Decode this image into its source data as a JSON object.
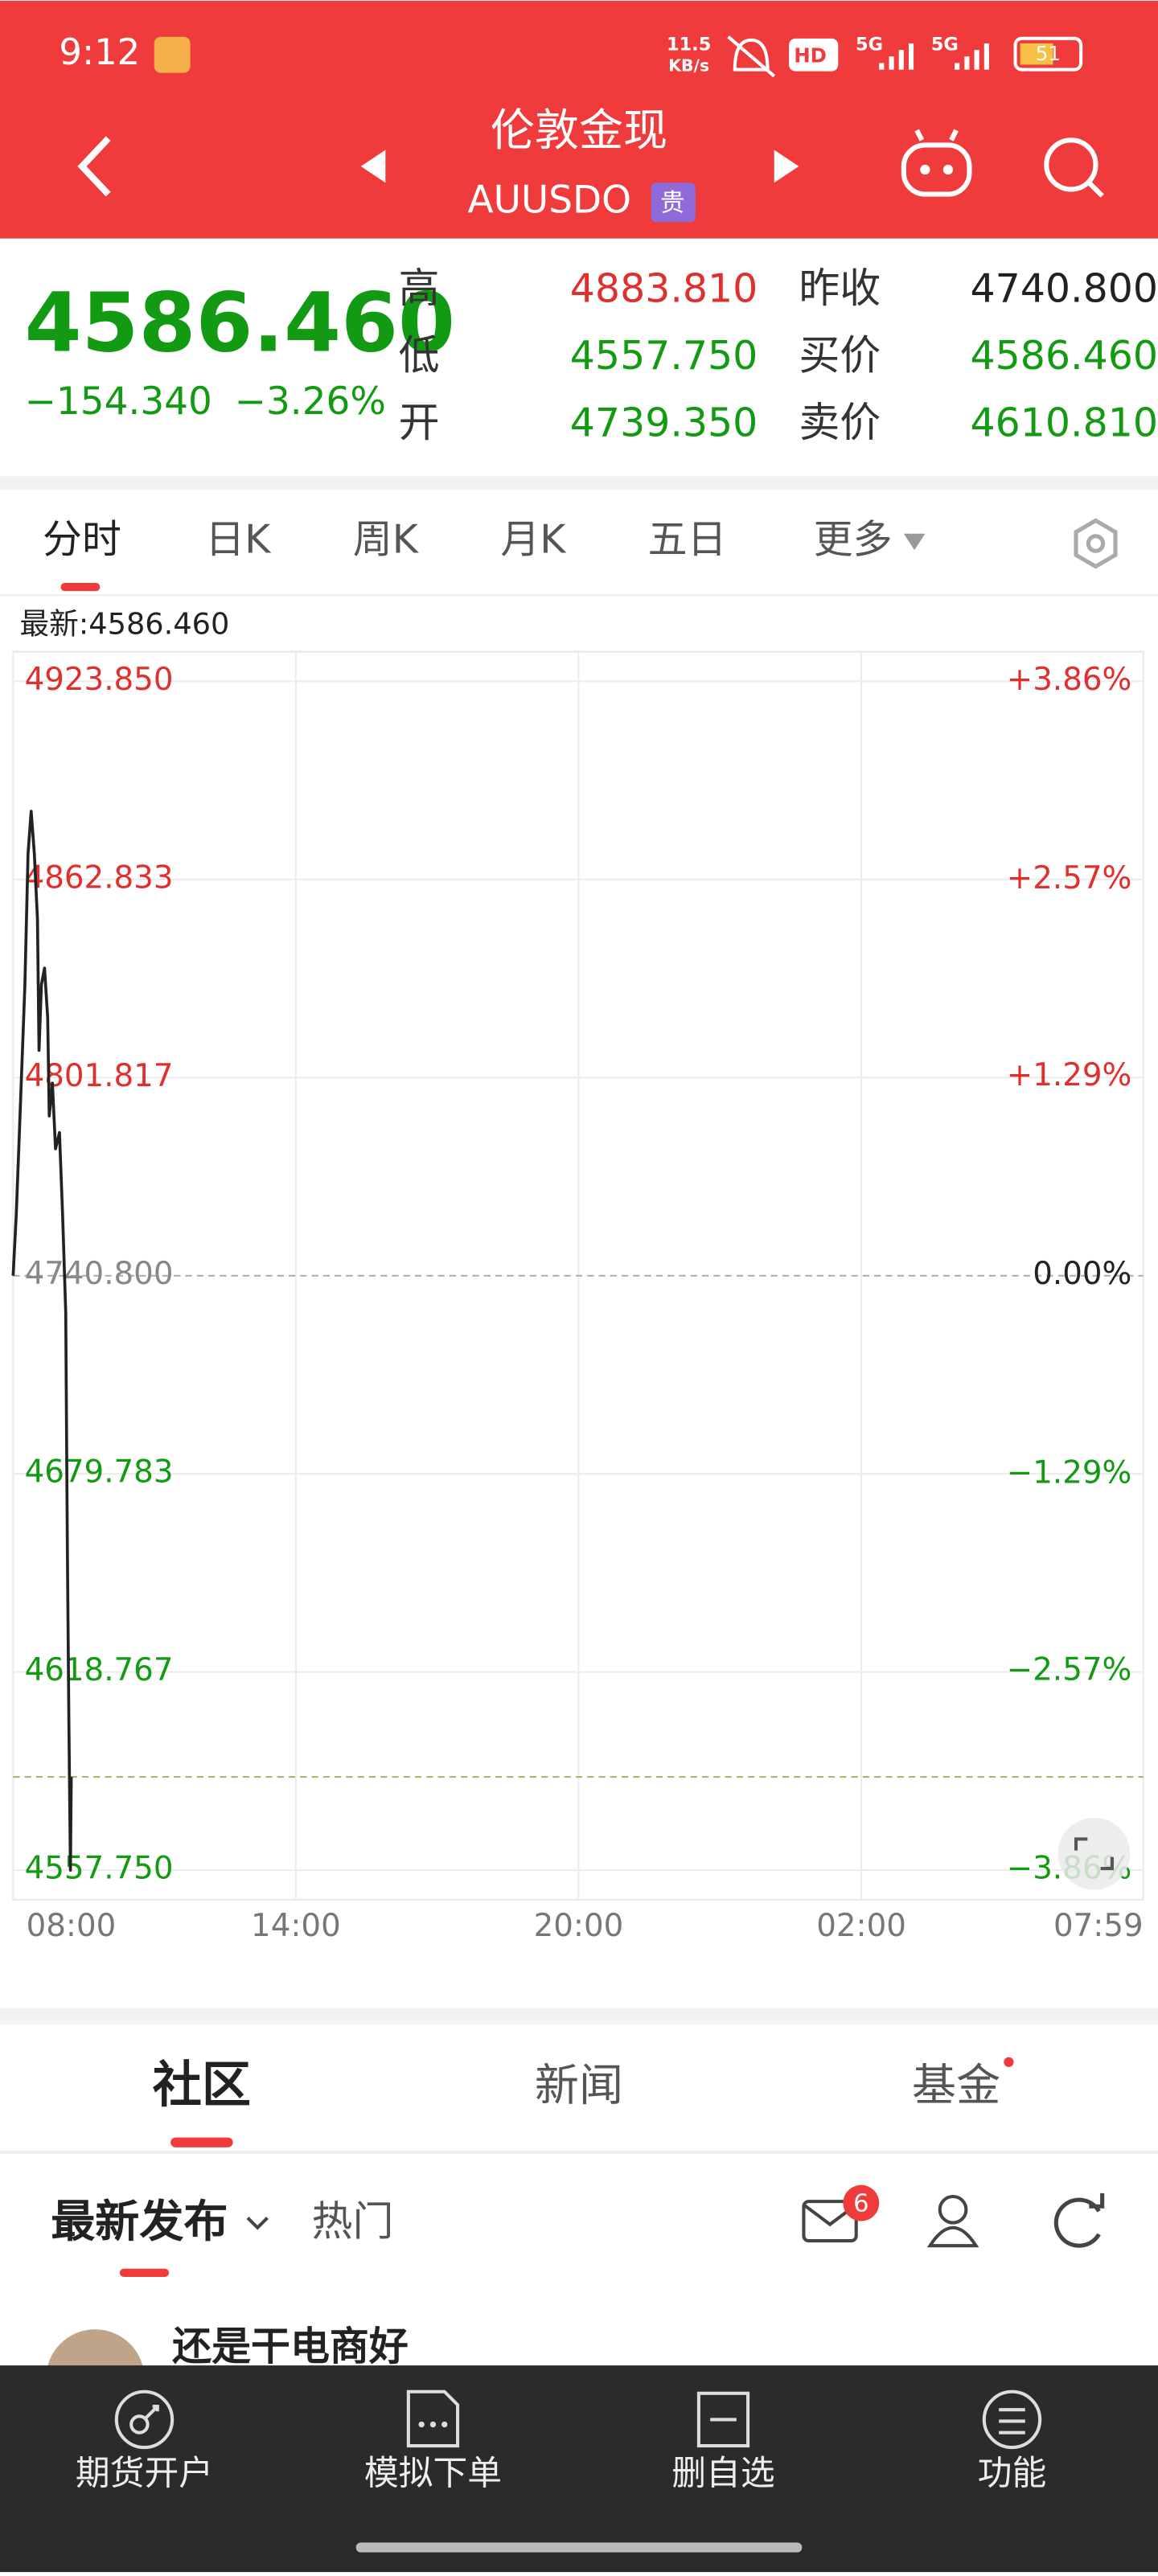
{
  "status_bar": {
    "time": "9:12",
    "net_speed": "11.5",
    "net_unit": "KB/s",
    "hd": "HD",
    "signal_1": "5G",
    "signal_2": "5G",
    "battery": "51"
  },
  "header": {
    "title": "伦敦金现",
    "code": "AUUSDO",
    "badge": "贵"
  },
  "quote": {
    "price": "4586.460",
    "change": "−154.340",
    "change_pct": "−3.26%",
    "stats": [
      {
        "label": "高",
        "value": "4883.810"
      },
      {
        "label": "低",
        "value": "4557.750"
      },
      {
        "label": "开",
        "value": "4739.350"
      },
      {
        "label": "昨收",
        "value": "4740.800"
      },
      {
        "label": "买价",
        "value": "4586.460"
      },
      {
        "label": "卖价",
        "value": "4610.810"
      }
    ]
  },
  "tabs": [
    "分时",
    "日K",
    "周K",
    "月K",
    "五日",
    "更多"
  ],
  "chart_data": {
    "type": "line",
    "latest_label": "最新:4586.460",
    "x": [
      "08:00",
      "08:04",
      "08:08",
      "08:15",
      "08:19",
      "08:23",
      "08:27",
      "08:31",
      "08:33",
      "08:36",
      "08:40",
      "08:44",
      "08:46",
      "08:50",
      "08:54",
      "08:59",
      "09:03",
      "09:07",
      "09:09",
      "09:11",
      "09:13",
      "09:14"
    ],
    "values": [
      4740.8,
      4759.7,
      4785,
      4830.4,
      4870.8,
      4883.81,
      4870.8,
      4850.6,
      4810.2,
      4830.4,
      4835.5,
      4820.3,
      4790,
      4800.1,
      4779.9,
      4784.9,
      4759.7,
      4729.4,
      4658.7,
      4603.1,
      4557.75,
      4586.46
    ],
    "color": "#222222",
    "up_color": "#e0302e",
    "down_color": "#129a12",
    "flat_color": "#888888",
    "xlim": [
      "08:00",
      "07:59"
    ],
    "xticks": [
      "08:00",
      "14:00",
      "20:00",
      "02:00",
      "07:59"
    ],
    "ylim": [
      4557.75,
      4923.85
    ],
    "yticks": [
      {
        "value": 4923.85,
        "label": "4923.850"
      },
      {
        "value": 4862.833,
        "label": "4862.833"
      },
      {
        "value": 4801.817,
        "label": "4801.817"
      },
      {
        "value": 4740.8,
        "label": "4740.800"
      },
      {
        "value": 4679.783,
        "label": "4679.783"
      },
      {
        "value": 4618.767,
        "label": "4618.767"
      },
      {
        "value": 4557.75,
        "label": "4557.750"
      }
    ],
    "y2lim": [
      -3.86,
      3.86
    ],
    "y2ticks": [
      {
        "value": 3.86,
        "label": "+3.86%"
      },
      {
        "value": 2.57,
        "label": "+2.57%"
      },
      {
        "value": 1.29,
        "label": "+1.29%"
      },
      {
        "value": 0,
        "label": "0.00%"
      },
      {
        "value": -1.29,
        "label": "−1.29%"
      },
      {
        "value": -2.57,
        "label": "−2.57%"
      },
      {
        "value": -3.86,
        "label": "−3.86%"
      }
    ],
    "grid": true
  },
  "community": {
    "tabs": [
      "社区",
      "新闻",
      "基金"
    ],
    "sub_tabs": [
      "最新发布",
      "热门"
    ],
    "mail_badge": "6",
    "post_title": "还是干电商好"
  },
  "bottom_nav": [
    "期货开户",
    "模拟下单",
    "删自选",
    "功能"
  ]
}
